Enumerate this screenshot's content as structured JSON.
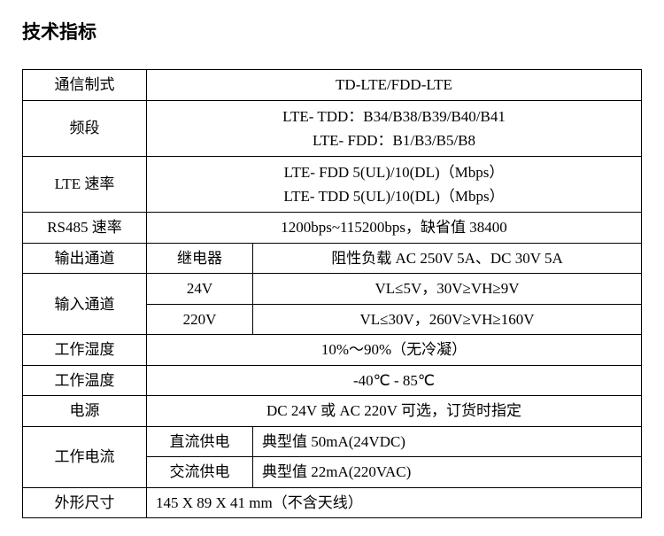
{
  "title": "技术指标",
  "table": {
    "rows": [
      {
        "label": "通信制式",
        "value": "TD-LTE/FDD-LTE"
      },
      {
        "label": "频段",
        "line1": "LTE- TDD：B34/B38/B39/B40/B41",
        "line2": "LTE- FDD：B1/B3/B5/B8"
      },
      {
        "label": "LTE 速率",
        "line1": "LTE- FDD 5(UL)/10(DL)（Mbps）",
        "line2": "LTE- TDD 5(UL)/10(DL)（Mbps）"
      },
      {
        "label": "RS485 速率",
        "value": "1200bps~115200bps，缺省值 38400"
      },
      {
        "label": "输出通道",
        "sub": "继电器",
        "value": "阻性负载 AC 250V 5A、DC 30V 5A"
      },
      {
        "label": "输入通道",
        "sub1": "24V",
        "value1": "VL≤5V，30V≥VH≥9V",
        "sub2": "220V",
        "value2": "VL≤30V，260V≥VH≥160V"
      },
      {
        "label": "工作湿度",
        "value": "10%～90%（无冷凝）"
      },
      {
        "label": "工作温度",
        "value": "-40℃ - 85℃"
      },
      {
        "label": "电源",
        "value": "DC 24V 或 AC 220V 可选，订货时指定"
      },
      {
        "label": "工作电流",
        "sub1": "直流供电",
        "value1": "典型值 50mA(24VDC)",
        "sub2": "交流供电",
        "value2": "典型值 22mA(220VAC)"
      },
      {
        "label": "外形尺寸",
        "value": "145 X 89 X 41 mm（不含天线）"
      }
    ]
  }
}
